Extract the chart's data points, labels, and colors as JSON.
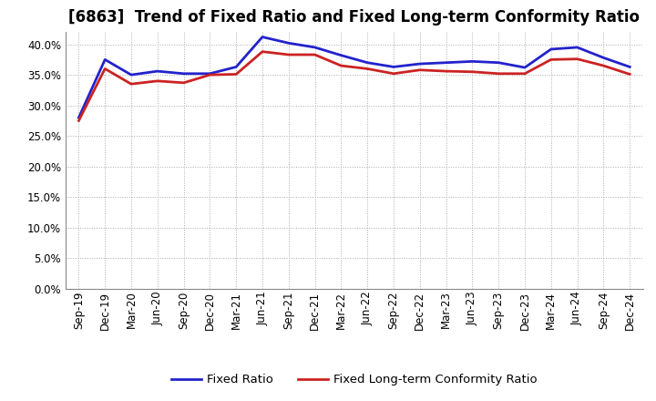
{
  "title": "[6863]  Trend of Fixed Ratio and Fixed Long-term Conformity Ratio",
  "x_labels": [
    "Sep-19",
    "Dec-19",
    "Mar-20",
    "Jun-20",
    "Sep-20",
    "Dec-20",
    "Mar-21",
    "Jun-21",
    "Sep-21",
    "Dec-21",
    "Mar-22",
    "Jun-22",
    "Sep-22",
    "Dec-22",
    "Mar-23",
    "Jun-23",
    "Sep-23",
    "Dec-23",
    "Mar-24",
    "Jun-24",
    "Sep-24",
    "Dec-24"
  ],
  "fixed_ratio": [
    0.28,
    0.375,
    0.35,
    0.356,
    0.352,
    0.352,
    0.363,
    0.412,
    0.402,
    0.395,
    0.382,
    0.37,
    0.363,
    0.368,
    0.37,
    0.372,
    0.37,
    0.362,
    0.392,
    0.395,
    0.378,
    0.363
  ],
  "fixed_lt_ratio": [
    0.275,
    0.36,
    0.335,
    0.34,
    0.337,
    0.35,
    0.351,
    0.388,
    0.383,
    0.383,
    0.365,
    0.36,
    0.352,
    0.358,
    0.356,
    0.355,
    0.352,
    0.352,
    0.375,
    0.376,
    0.365,
    0.351
  ],
  "fixed_ratio_color": "#2222cc",
  "fixed_lt_ratio_color": "#cc2222",
  "background_color": "#ffffff",
  "plot_bg_color": "#ffffff",
  "grid_color": "#aaaaaa",
  "ylim": [
    0.0,
    0.42
  ],
  "yticks": [
    0.0,
    0.05,
    0.1,
    0.15,
    0.2,
    0.25,
    0.3,
    0.35,
    0.4
  ],
  "legend_fixed_ratio": "Fixed Ratio",
  "legend_fixed_lt_ratio": "Fixed Long-term Conformity Ratio",
  "title_fontsize": 12,
  "tick_fontsize": 8.5,
  "legend_fontsize": 9.5
}
